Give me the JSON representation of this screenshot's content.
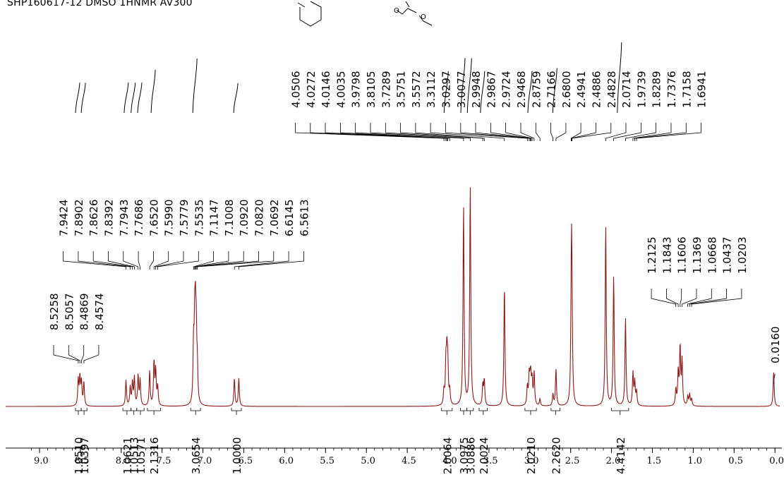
{
  "title": "SHP160617-12  DMSO 1HNMR   AV300",
  "chart_data": {
    "type": "line",
    "title": "SHP160617-12  DMSO 1HNMR   AV300",
    "xlabel": "",
    "ylabel": "",
    "xlim": [
      9.2,
      -0.05
    ],
    "x_reversed": true,
    "grid": false,
    "legend": "none",
    "line_color": "#8b1a1a",
    "x_ticks": [
      "9.0",
      "8.5",
      "8.0",
      "7.5",
      "7.0",
      "6.5",
      "6.0",
      "5.5",
      "5.0",
      "4.5",
      "4.0",
      "3.5",
      "3.0",
      "2.5",
      "2.0",
      "1.5",
      "1.0",
      "0.5",
      "0.0"
    ],
    "peaks": [
      {
        "ppm": 8.526,
        "h": 0.11
      },
      {
        "ppm": 8.506,
        "h": 0.12
      },
      {
        "ppm": 8.487,
        "h": 0.1
      },
      {
        "ppm": 8.457,
        "h": 0.1
      },
      {
        "ppm": 7.942,
        "h": 0.11
      },
      {
        "ppm": 7.89,
        "h": 0.08
      },
      {
        "ppm": 7.863,
        "h": 0.1
      },
      {
        "ppm": 7.839,
        "h": 0.12
      },
      {
        "ppm": 7.794,
        "h": 0.13
      },
      {
        "ppm": 7.769,
        "h": 0.11
      },
      {
        "ppm": 7.652,
        "h": 0.15
      },
      {
        "ppm": 7.599,
        "h": 0.19
      },
      {
        "ppm": 7.578,
        "h": 0.15
      },
      {
        "ppm": 7.554,
        "h": 0.08
      },
      {
        "ppm": 7.115,
        "h": 0.24
      },
      {
        "ppm": 7.101,
        "h": 0.28
      },
      {
        "ppm": 7.092,
        "h": 0.3
      },
      {
        "ppm": 7.082,
        "h": 0.25
      },
      {
        "ppm": 7.069,
        "h": 0.14
      },
      {
        "ppm": 6.615,
        "h": 0.12
      },
      {
        "ppm": 6.561,
        "h": 0.12
      },
      {
        "ppm": 4.051,
        "h": 0.06
      },
      {
        "ppm": 4.027,
        "h": 0.17
      },
      {
        "ppm": 4.015,
        "h": 0.2
      },
      {
        "ppm": 4.004,
        "h": 0.17
      },
      {
        "ppm": 3.98,
        "h": 0.06
      },
      {
        "ppm": 3.811,
        "h": 0.86
      },
      {
        "ppm": 3.729,
        "h": 0.95
      },
      {
        "ppm": 3.575,
        "h": 0.09
      },
      {
        "ppm": 3.557,
        "h": 0.11
      },
      {
        "ppm": 3.311,
        "h": 0.52
      },
      {
        "ppm": 3.03,
        "h": 0.08
      },
      {
        "ppm": 3.008,
        "h": 0.12
      },
      {
        "ppm": 2.995,
        "h": 0.08
      },
      {
        "ppm": 2.987,
        "h": 0.09
      },
      {
        "ppm": 2.972,
        "h": 0.1
      },
      {
        "ppm": 2.947,
        "h": 0.14
      },
      {
        "ppm": 2.876,
        "h": 0.03
      },
      {
        "ppm": 2.717,
        "h": 0.05
      },
      {
        "ppm": 2.68,
        "h": 0.16
      },
      {
        "ppm": 2.494,
        "h": 0.18
      },
      {
        "ppm": 2.489,
        "h": 0.55
      },
      {
        "ppm": 2.483,
        "h": 0.18
      },
      {
        "ppm": 2.071,
        "h": 0.78
      },
      {
        "ppm": 1.974,
        "h": 0.56
      },
      {
        "ppm": 1.829,
        "h": 0.38
      },
      {
        "ppm": 1.738,
        "h": 0.14
      },
      {
        "ppm": 1.716,
        "h": 0.1
      },
      {
        "ppm": 1.694,
        "h": 0.06
      },
      {
        "ppm": 1.213,
        "h": 0.07
      },
      {
        "ppm": 1.184,
        "h": 0.14
      },
      {
        "ppm": 1.161,
        "h": 0.25
      },
      {
        "ppm": 1.137,
        "h": 0.19
      },
      {
        "ppm": 1.067,
        "h": 0.04
      },
      {
        "ppm": 1.044,
        "h": 0.05
      },
      {
        "ppm": 1.02,
        "h": 0.03
      },
      {
        "ppm": 0.016,
        "h": 0.15
      }
    ],
    "peak_label_groups": [
      {
        "labels": [
          "8.5258",
          "8.5057",
          "8.4869",
          "8.4574"
        ],
        "ppm": [
          8.526,
          8.506,
          8.487,
          8.457
        ]
      },
      {
        "labels": [
          "7.9424",
          "7.8902",
          "7.8626",
          "7.8392",
          "7.7943",
          "7.7686",
          "7.6520",
          "7.5990",
          "7.5779",
          "7.5535",
          "7.1147",
          "7.1008",
          "7.0920",
          "7.0820",
          "7.0692",
          "6.6145",
          "6.5613"
        ],
        "ppm": [
          7.942,
          7.89,
          7.863,
          7.839,
          7.794,
          7.769,
          7.652,
          7.599,
          7.578,
          7.554,
          7.115,
          7.101,
          7.092,
          7.082,
          7.069,
          6.615,
          6.561
        ]
      },
      {
        "labels": [
          "4.0506",
          "4.0272",
          "4.0146",
          "4.0035",
          "3.9798",
          "3.8105",
          "3.7289",
          "3.5751",
          "3.5572",
          "3.3112",
          "3.0297",
          "3.0077",
          "2.9948",
          "2.9867",
          "2.9724",
          "2.9468",
          "2.8759",
          "2.7166",
          "2.6800",
          "2.4941",
          "2.4886",
          "2.4828",
          "2.0714",
          "1.9739",
          "1.8289",
          "1.7376",
          "1.7158",
          "1.6941"
        ],
        "ppm": [
          4.051,
          4.027,
          4.015,
          4.004,
          3.98,
          3.811,
          3.729,
          3.575,
          3.557,
          3.311,
          3.03,
          3.008,
          2.995,
          2.987,
          2.972,
          2.947,
          2.876,
          2.717,
          2.68,
          2.494,
          2.489,
          2.483,
          2.071,
          1.974,
          1.829,
          1.738,
          1.716,
          1.694
        ]
      },
      {
        "labels": [
          "1.2125",
          "1.1843",
          "1.1606",
          "1.1369",
          "1.0668",
          "1.0437",
          "1.0203"
        ],
        "ppm": [
          1.213,
          1.184,
          1.161,
          1.137,
          1.067,
          1.044,
          1.02
        ]
      },
      {
        "labels": [
          "0.0160"
        ],
        "ppm": [
          0.016
        ]
      }
    ],
    "integrals": [
      {
        "value": "1.0510",
        "from": 8.56,
        "to": 8.49
      },
      {
        "value": "1.0397",
        "from": 8.49,
        "to": 8.42
      },
      {
        "value": "1.0621",
        "from": 7.98,
        "to": 7.88
      },
      {
        "value": "1.0513",
        "from": 7.88,
        "to": 7.81
      },
      {
        "value": "1.0571",
        "from": 7.81,
        "to": 7.72
      },
      {
        "value": "2.1316",
        "from": 7.68,
        "to": 7.52
      },
      {
        "value": "3.0654",
        "from": 7.15,
        "to": 7.03
      },
      {
        "value": "1.0000",
        "from": 6.65,
        "to": 6.53
      },
      {
        "value": "2.0064",
        "from": 4.08,
        "to": 3.95
      },
      {
        "value": "3.0975",
        "from": 3.85,
        "to": 3.77
      },
      {
        "value": "3.0886",
        "from": 3.77,
        "to": 3.69
      },
      {
        "value": "2.0024",
        "from": 3.62,
        "to": 3.52
      },
      {
        "value": "2.0210",
        "from": 3.06,
        "to": 2.92
      },
      {
        "value": "2.2620",
        "from": 2.74,
        "to": 2.63
      },
      {
        "value": "4.4142",
        "from": 2.0,
        "to": 1.79
      }
    ]
  }
}
